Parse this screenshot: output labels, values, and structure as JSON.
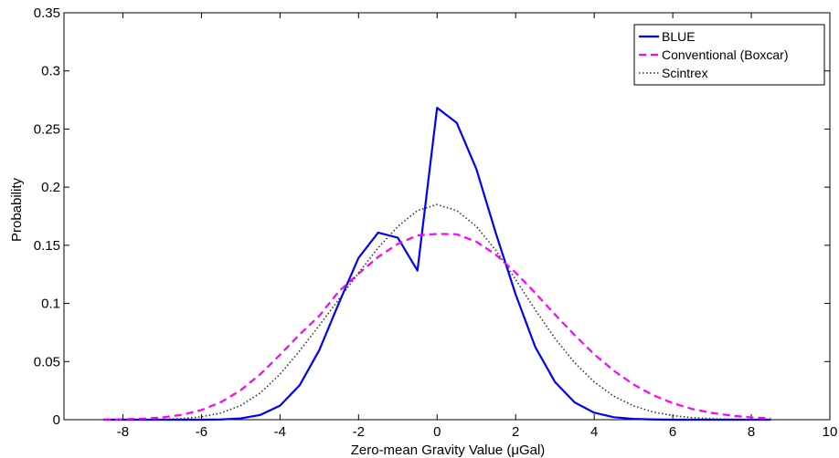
{
  "chart_data": {
    "type": "line",
    "title": "",
    "xlabel": "Zero-mean Gravity Value (μGal)",
    "ylabel": "Probability",
    "xlim": [
      -9.5,
      10
    ],
    "ylim": [
      0,
      0.35
    ],
    "xticks": [
      -8,
      -6,
      -4,
      -2,
      0,
      2,
      4,
      6,
      8,
      10
    ],
    "xtick_labels": [
      "-8",
      "-6",
      "-4",
      "-2",
      "0",
      "2",
      "4",
      "6",
      "8",
      "10"
    ],
    "yticks": [
      0,
      0.05,
      0.1,
      0.15,
      0.2,
      0.25,
      0.3,
      0.35
    ],
    "ytick_labels": [
      "0",
      "0.05",
      "0.1",
      "0.15",
      "0.2",
      "0.25",
      "0.3",
      "0.35"
    ],
    "grid": false,
    "legend_position": "top-right",
    "x": [
      -8.5,
      -8,
      -7.5,
      -7,
      -6.5,
      -6,
      -5.5,
      -5,
      -4.5,
      -4,
      -3.5,
      -3,
      -2.5,
      -2,
      -1.5,
      -1,
      -0.5,
      0,
      0.5,
      1,
      1.5,
      2,
      2.5,
      3,
      3.5,
      4,
      4.5,
      5,
      5.5,
      6,
      6.5,
      7,
      7.5,
      8,
      8.5
    ],
    "series": [
      {
        "name": "BLUE",
        "color": "#0000ff",
        "dash": "solid",
        "values": [
          0.0,
          0.0,
          0.0,
          0.0,
          0.0,
          0.0,
          0.0002,
          0.0011,
          0.0041,
          0.0121,
          0.0296,
          0.0598,
          0.1003,
          0.1392,
          0.1609,
          0.1565,
          0.1283,
          0.2683,
          0.2553,
          0.2156,
          0.1599,
          0.1077,
          0.0625,
          0.0325,
          0.0149,
          0.006,
          0.0021,
          0.0007,
          0.0002,
          0.0,
          0.0,
          0.0,
          0.0,
          0.0,
          0.0
        ]
      },
      {
        "name": "Conventional (Boxcar)",
        "color": "#ff00ff",
        "dash": "dashed",
        "values": [
          0.0001,
          0.0003,
          0.0008,
          0.0019,
          0.0042,
          0.0083,
          0.0152,
          0.0254,
          0.0392,
          0.0558,
          0.0734,
          0.0893,
          0.1104,
          0.1256,
          0.14,
          0.1512,
          0.1585,
          0.1598,
          0.1595,
          0.1531,
          0.1418,
          0.1265,
          0.1089,
          0.0905,
          0.0728,
          0.0563,
          0.0421,
          0.0303,
          0.0211,
          0.0142,
          0.0092,
          0.0058,
          0.0035,
          0.002,
          0.0011
        ]
      },
      {
        "name": "Scintrex",
        "color": "#333333",
        "dash": "dotted",
        "values": [
          0.0,
          0.0,
          0.0001,
          0.0003,
          0.0009,
          0.0025,
          0.0058,
          0.0122,
          0.023,
          0.0391,
          0.0592,
          0.081,
          0.1036,
          0.1262,
          0.1479,
          0.1662,
          0.1799,
          0.185,
          0.1799,
          0.1662,
          0.1455,
          0.1205,
          0.0945,
          0.07,
          0.049,
          0.0324,
          0.0202,
          0.0119,
          0.0066,
          0.0035,
          0.0017,
          0.0008,
          0.0004,
          0.0002,
          0.0001
        ]
      }
    ]
  }
}
